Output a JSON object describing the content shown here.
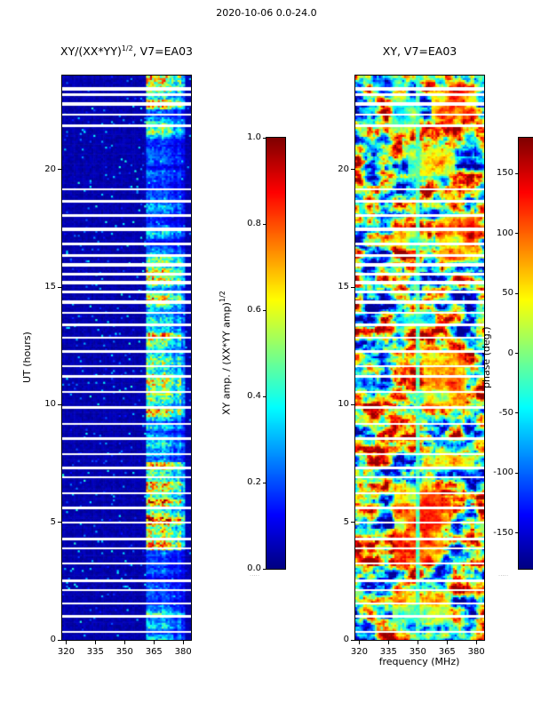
{
  "figure": {
    "suptitle": "2020-10-06 0.0-24.0",
    "background": "#ffffff",
    "text_color": "#000000"
  },
  "left_panel": {
    "title_base": "XY/(XX*YY)",
    "title_sup": "1/2",
    "title_rest": ", V7=EA03",
    "ylabel": "UT (hours)",
    "xtick_labels": [
      "320",
      "335",
      "350",
      "365",
      "380"
    ],
    "ytick_labels": [
      "0",
      "5",
      "10",
      "15",
      "20"
    ]
  },
  "left_colorbar": {
    "label_base": "XY amp. / (XX*YY amp)",
    "label_sup": "1/2",
    "tick_labels": [
      "1.0",
      "0.8",
      "0.6",
      "0.4",
      "0.2",
      "0.0"
    ],
    "micro_text": "·····"
  },
  "right_panel": {
    "title": "XY, V7=EA03",
    "xlabel": "frequency (MHz)",
    "xtick_labels": [
      "320",
      "335",
      "350",
      "365",
      "380"
    ],
    "ytick_labels": [
      "0",
      "5",
      "10",
      "15",
      "20"
    ]
  },
  "right_colorbar": {
    "label": "phase (deg.)",
    "tick_labels": [
      "150",
      "100",
      "50",
      "0",
      "-50",
      "-100",
      "-150"
    ],
    "micro_text": "·····"
  },
  "chart_data": [
    {
      "type": "heatmap",
      "panel": "left",
      "title": "XY/(XX*YY)^(1/2), V7=EA03",
      "xlabel": "",
      "ylabel": "UT (hours)",
      "xlim": [
        318,
        384
      ],
      "ylim": [
        0,
        24
      ],
      "xticks": [
        320,
        335,
        350,
        365,
        380
      ],
      "yticks": [
        0,
        5,
        10,
        15,
        20
      ],
      "colormap": "jet",
      "value_label": "XY amp. / (XX*YY amp)^(1/2)",
      "value_range": [
        0,
        1
      ],
      "colorbar_ticks": [
        1.0,
        0.8,
        0.6,
        0.4,
        0.2,
        0.0
      ],
      "background_level": [
        0.02,
        0.07
      ],
      "speckle_prob": 0.03,
      "rfi_band_mhz": [
        361,
        383
      ],
      "activity_envelope": [
        {
          "t": [
            0,
            1.5
          ],
          "a": 0.55
        },
        {
          "t": [
            1.5,
            3.8
          ],
          "a": 0.3
        },
        {
          "t": [
            3.8,
            7.6
          ],
          "a": 0.95
        },
        {
          "t": [
            7.6,
            9.3
          ],
          "a": 0.5
        },
        {
          "t": [
            9.3,
            13.1
          ],
          "a": 0.9
        },
        {
          "t": [
            13.1,
            14.2
          ],
          "a": 0.55
        },
        {
          "t": [
            14.2,
            16.3
          ],
          "a": 0.75
        },
        {
          "t": [
            16.3,
            18.8
          ],
          "a": 0.4
        },
        {
          "t": [
            18.8,
            21.3
          ],
          "a": 0.35
        },
        {
          "t": [
            21.3,
            22.6
          ],
          "a": 0.6
        },
        {
          "t": [
            22.6,
            24
          ],
          "a": 0.9
        }
      ],
      "gaps_hours": [
        [
          0.35,
          2
        ],
        [
          1.0,
          3
        ],
        [
          1.55,
          2
        ],
        [
          2.1,
          2
        ],
        [
          2.5,
          3
        ],
        [
          3.25,
          2
        ],
        [
          3.9,
          2
        ],
        [
          4.3,
          3
        ],
        [
          5.0,
          2
        ],
        [
          5.6,
          3
        ],
        [
          6.25,
          2
        ],
        [
          6.9,
          2
        ],
        [
          7.3,
          3
        ],
        [
          7.9,
          2
        ],
        [
          8.55,
          3
        ],
        [
          9.2,
          2
        ],
        [
          9.9,
          3
        ],
        [
          10.55,
          2
        ],
        [
          11.2,
          3
        ],
        [
          11.65,
          2
        ],
        [
          12.25,
          3
        ],
        [
          12.85,
          2
        ],
        [
          13.4,
          3
        ],
        [
          13.9,
          2
        ],
        [
          14.35,
          4
        ],
        [
          14.8,
          3
        ],
        [
          15.2,
          4
        ],
        [
          15.55,
          3
        ],
        [
          15.95,
          4
        ],
        [
          16.35,
          3
        ],
        [
          16.85,
          3
        ],
        [
          17.45,
          4
        ],
        [
          18.05,
          3
        ],
        [
          18.65,
          3
        ],
        [
          19.15,
          2
        ],
        [
          21.85,
          3
        ],
        [
          22.35,
          2
        ],
        [
          22.8,
          4
        ],
        [
          23.2,
          3
        ],
        [
          23.45,
          4
        ]
      ]
    },
    {
      "type": "heatmap",
      "panel": "right",
      "title": "XY, V7=EA03",
      "xlabel": "frequency (MHz)",
      "ylabel": "",
      "xlim": [
        318,
        384
      ],
      "ylim": [
        0,
        24
      ],
      "xticks": [
        320,
        335,
        350,
        365,
        380
      ],
      "yticks": [
        0,
        5,
        10,
        15,
        20
      ],
      "colormap": "jet",
      "value_label": "phase (deg.)",
      "value_range": [
        -180,
        180
      ],
      "colorbar_ticks": [
        150,
        100,
        50,
        0,
        -50,
        -100,
        -150
      ],
      "cyan_line_mhz": 350,
      "features": [
        {
          "t": [
            0.0,
            0.35
          ],
          "f": [
            318,
            384
          ],
          "v": 0.55
        },
        {
          "t": [
            0.5,
            2.2
          ],
          "f": [
            336,
            368
          ],
          "v": 0.62
        },
        {
          "t": [
            3.0,
            6.8
          ],
          "f": [
            337,
            363
          ],
          "v": 0.78
        },
        {
          "t": [
            4.5,
            6.3
          ],
          "f": [
            350,
            368
          ],
          "v": 0.88
        },
        {
          "t": [
            7.0,
            8.1
          ],
          "f": [
            352,
            380
          ],
          "v": 0.72
        },
        {
          "t": [
            9.6,
            12.6
          ],
          "f": [
            352,
            375
          ],
          "v": 0.7
        },
        {
          "t": [
            13.0,
            14.1
          ],
          "f": [
            338,
            360
          ],
          "v": 0.35
        },
        {
          "t": [
            15.8,
            18.3
          ],
          "f": [
            360,
            382
          ],
          "v": 0.82
        },
        {
          "t": [
            16.4,
            17.6
          ],
          "f": [
            338,
            356
          ],
          "v": 0.6
        },
        {
          "t": [
            19.4,
            21.1
          ],
          "f": [
            344,
            370
          ],
          "v": 0.66
        },
        {
          "t": [
            21.4,
            23.3
          ],
          "f": [
            336,
            352
          ],
          "v": 0.32
        },
        {
          "t": [
            21.9,
            23.7
          ],
          "f": [
            356,
            381
          ],
          "v": 0.84
        },
        {
          "t": [
            23.2,
            24.0
          ],
          "f": [
            326,
            344
          ],
          "v": 0.25
        }
      ],
      "gaps_hours": [
        [
          0.35,
          2
        ],
        [
          1.0,
          3
        ],
        [
          1.55,
          2
        ],
        [
          2.1,
          2
        ],
        [
          2.5,
          3
        ],
        [
          3.25,
          2
        ],
        [
          3.9,
          2
        ],
        [
          4.3,
          3
        ],
        [
          5.0,
          2
        ],
        [
          5.6,
          3
        ],
        [
          6.25,
          2
        ],
        [
          6.9,
          2
        ],
        [
          7.3,
          3
        ],
        [
          7.9,
          2
        ],
        [
          8.55,
          3
        ],
        [
          9.2,
          2
        ],
        [
          9.9,
          3
        ],
        [
          10.55,
          2
        ],
        [
          11.2,
          3
        ],
        [
          11.65,
          2
        ],
        [
          12.25,
          3
        ],
        [
          12.85,
          2
        ],
        [
          13.4,
          3
        ],
        [
          13.9,
          2
        ],
        [
          14.35,
          4
        ],
        [
          14.8,
          3
        ],
        [
          15.2,
          4
        ],
        [
          15.55,
          3
        ],
        [
          15.95,
          4
        ],
        [
          16.35,
          3
        ],
        [
          16.85,
          3
        ],
        [
          17.45,
          4
        ],
        [
          18.05,
          3
        ],
        [
          18.65,
          3
        ],
        [
          19.15,
          2
        ],
        [
          21.85,
          3
        ],
        [
          22.35,
          2
        ],
        [
          22.8,
          4
        ],
        [
          23.2,
          3
        ],
        [
          23.45,
          4
        ]
      ]
    }
  ]
}
